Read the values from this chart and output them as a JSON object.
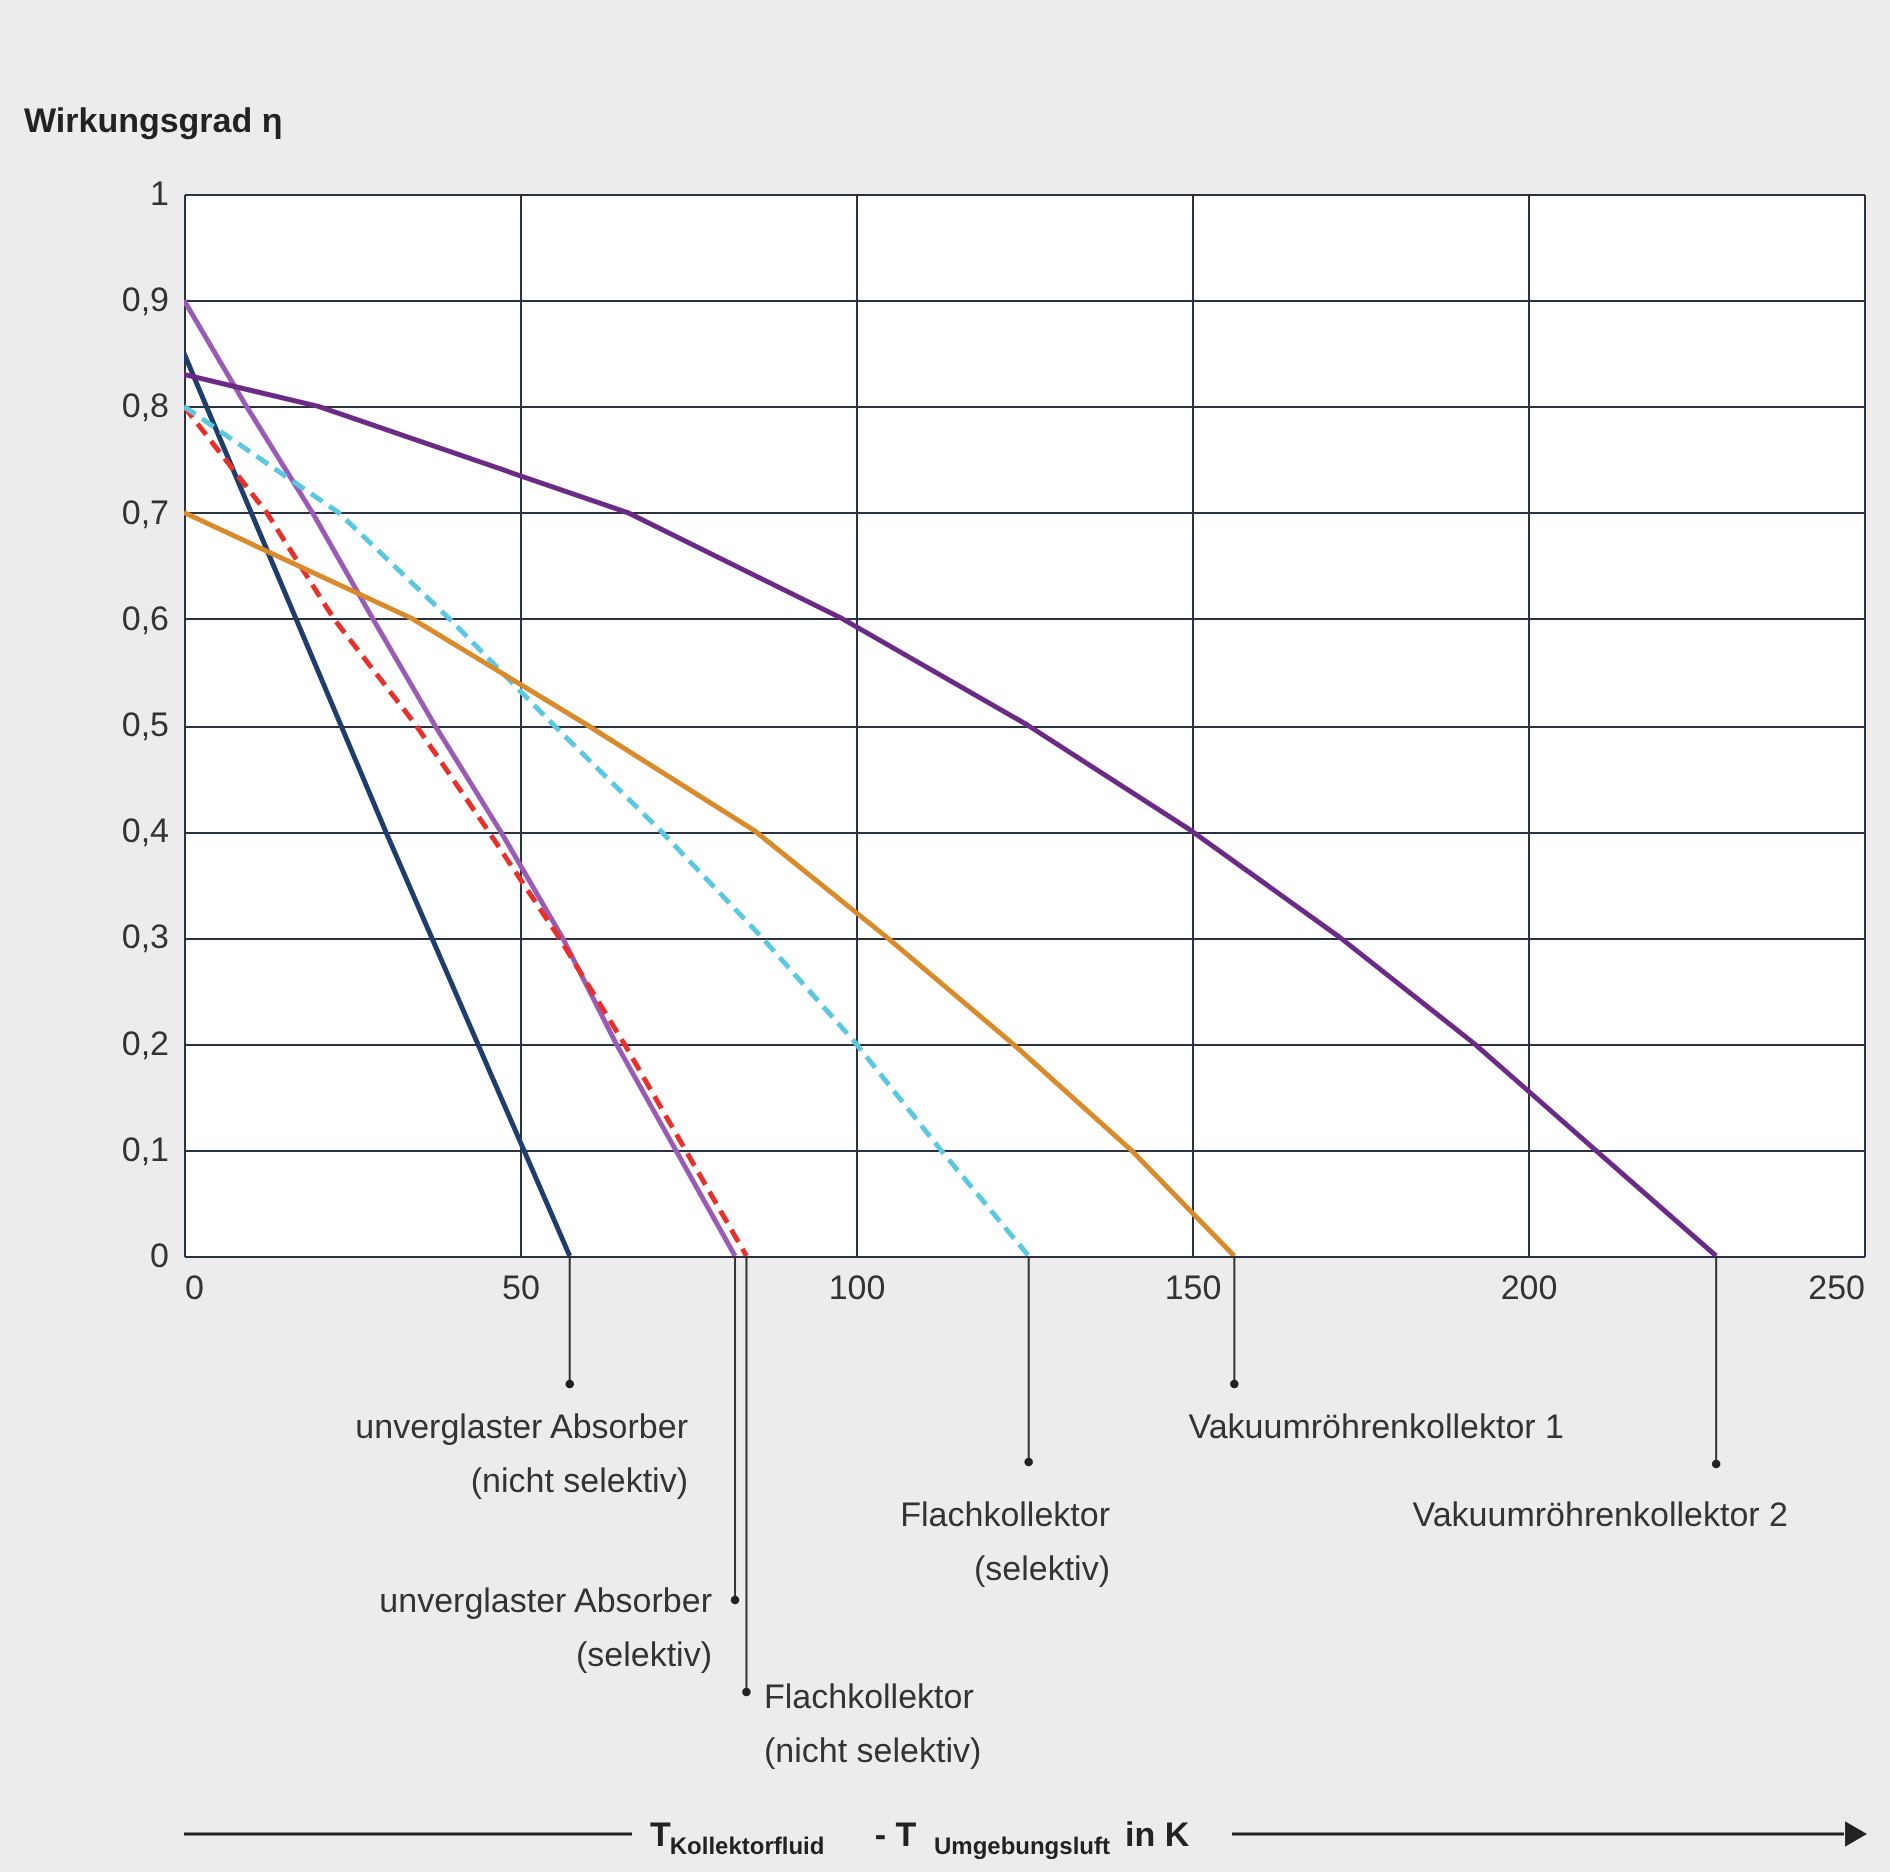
{
  "chart_data": {
    "type": "line",
    "ylabel": "Wirkungsgrad η",
    "xlabel": "T$_{Kollektorfluid}$ - T$_{Umgebungsluft}$ in K",
    "xlim": [
      0,
      250
    ],
    "xticks": [
      0,
      50,
      100,
      150,
      200,
      250
    ],
    "ylim": [
      0,
      1
    ],
    "yticks": [
      0,
      {
        "value": 0.1,
        "label": "0,1"
      },
      {
        "value": 0.2,
        "label": "0,2"
      },
      {
        "value": 0.3,
        "label": "0,3"
      },
      {
        "value": 0.4,
        "label": "0,4"
      },
      {
        "value": 0.5,
        "label": "0,5"
      },
      {
        "value": 0.6,
        "label": "0,6"
      },
      {
        "value": 0.7,
        "label": "0,7"
      },
      {
        "value": 0.8,
        "label": "0,8"
      },
      {
        "value": 0.9,
        "label": "0,9"
      },
      1
    ],
    "grid": true,
    "marker": "none",
    "series": [
      {
        "name": "unverglaster Absorber\n(nicht selektiv)",
        "color": "#1f3d6b",
        "line_style": "solid",
        "x": [
          0,
          30,
          57.4
        ],
        "values": [
          0.85,
          0.4,
          0
        ]
      },
      {
        "name": "unverglaster Absorber\n(selektiv)",
        "color": "#9a5bb5",
        "line_style": "solid",
        "x": [
          0,
          9.3,
          19.1,
          28.1,
          37.3,
          47.1,
          56.3,
          64.3,
          82
        ],
        "values": [
          0.9,
          0.8,
          0.7,
          0.6,
          0.5,
          0.4,
          0.3,
          0.2,
          0
        ]
      },
      {
        "name": "Flachkollektor\n(nicht selektiv)",
        "color": "#e8302a",
        "line_style": "dashed",
        "x": [
          0,
          12.3,
          22.3,
          34.5,
          45.3,
          55.8,
          65.5,
          83.7
        ],
        "values": [
          0.8,
          0.7,
          0.6,
          0.5,
          0.4,
          0.3,
          0.2,
          0
        ]
      },
      {
        "name": "Flachkollektor\n(selektiv)",
        "color": "#5bc8e0",
        "line_style": "dashed",
        "x": [
          0,
          23,
          39.5,
          55,
          71,
          86,
          100,
          112.6,
          125.7
        ],
        "values": [
          0.8,
          0.7,
          0.6,
          0.5,
          0.4,
          0.3,
          0.2,
          0.1,
          0
        ]
      },
      {
        "name": "Vakuumröhrenkollektor 1",
        "color": "#d98a2b",
        "line_style": "solid",
        "x": [
          0,
          34,
          60,
          85,
          104.6,
          123.3,
          140.9,
          156.3
        ],
        "values": [
          0.7,
          0.6,
          0.5,
          0.4,
          0.3,
          0.2,
          0.1,
          0
        ]
      },
      {
        "name": "Vakuumröhrenkollektor 2",
        "color": "#6b2a86",
        "line_style": "solid",
        "x": [
          0,
          20,
          66,
          98,
          125.5,
          150,
          172,
          192,
          210,
          228
        ],
        "values": [
          0.83,
          0.8,
          0.7,
          0.6,
          0.5,
          0.4,
          0.3,
          0.2,
          0.1,
          0
        ]
      }
    ]
  }
}
